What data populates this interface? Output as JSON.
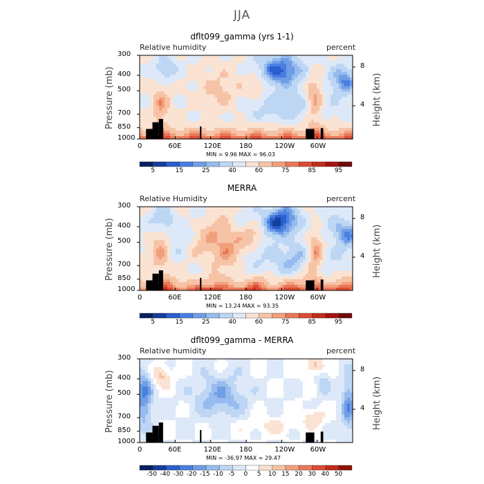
{
  "figure_title": "JJA",
  "chart_data": [
    {
      "type": "heatmap",
      "title": "dflt099_gamma (yrs 1-1)",
      "left_label": "Relative humidity",
      "right_label": "percent",
      "ylabel": "Pressure (mb)",
      "y2label": "Height (km)",
      "x_tick_labels": [
        "0",
        "60E",
        "120E",
        "180",
        "120W",
        "60W"
      ],
      "y_tick_labels": [
        "300",
        "400",
        "500",
        "700",
        "850",
        "1000"
      ],
      "y2_tick_labels": [
        "8",
        "4"
      ],
      "stats": "MIN =    9.96   MAX =   96.03",
      "colorbar_labels": [
        "5",
        "15",
        "25",
        "40",
        "60",
        "75",
        "85",
        "95"
      ],
      "field": "rh"
    },
    {
      "type": "heatmap",
      "title": "MERRA",
      "left_label": "Relative Humidity",
      "right_label": "percent",
      "ylabel": "Pressure (mb)",
      "y2label": "Height (km)",
      "x_tick_labels": [
        "0",
        "60E",
        "120E",
        "180",
        "120W",
        "60W"
      ],
      "y_tick_labels": [
        "300",
        "400",
        "500",
        "700",
        "850",
        "1000"
      ],
      "y2_tick_labels": [
        "8",
        "4"
      ],
      "stats": "MIN =   13.24   MAX =   93.35",
      "colorbar_labels": [
        "5",
        "15",
        "25",
        "40",
        "60",
        "75",
        "85",
        "95"
      ],
      "field": "rh2"
    },
    {
      "type": "heatmap",
      "title": "dflt099_gamma - MERRA",
      "left_label": "Relative humidity",
      "right_label": "percent",
      "ylabel": "Pressure (mb)",
      "y2label": "Height (km)",
      "x_tick_labels": [
        "0",
        "60E",
        "120E",
        "180",
        "120W",
        "60W"
      ],
      "y_tick_labels": [
        "300",
        "400",
        "500",
        "700",
        "850",
        "1000"
      ],
      "y2_tick_labels": [
        "8",
        "4"
      ],
      "stats": "MIN =  -36.97   MAX =   29.47",
      "colorbar_labels": [
        "-50",
        "-40",
        "-30",
        "-20",
        "-15",
        "-10",
        "-5",
        "0",
        "5",
        "10",
        "15",
        "20",
        "30",
        "40",
        "50"
      ],
      "field": "diff"
    }
  ],
  "colors": {
    "rh_scale": [
      "#08205e",
      "#123e9c",
      "#2a5fcf",
      "#4a7fe0",
      "#6f9de6",
      "#97bbee",
      "#bdd6f4",
      "#dde9f8",
      "#fbe3d3",
      "#f7c3a6",
      "#f2a07c",
      "#e9775a",
      "#dc4c33",
      "#c42a1a",
      "#a3150d",
      "#6e0a08"
    ],
    "diff_scale": [
      "#08205e",
      "#123e9c",
      "#2a5fcf",
      "#4a7fe0",
      "#6f9de6",
      "#97bbee",
      "#bdd6f4",
      "#dde9f8",
      "#ffffff",
      "#fbe3d3",
      "#f7c3a6",
      "#f2a07c",
      "#e9775a",
      "#dc4c33",
      "#c42a1a",
      "#8f1208"
    ],
    "terrain": "#000000"
  }
}
